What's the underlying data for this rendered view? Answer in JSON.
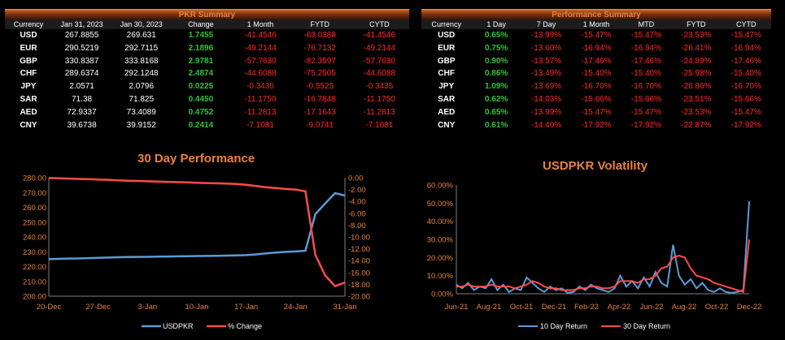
{
  "pkr_summary": {
    "title": "PKR Summary",
    "headers": [
      "Currency",
      "Jan 31, 2023",
      "Jan 30, 2023",
      "Change",
      "1 Month",
      "FYTD",
      "CYTD"
    ],
    "rows": [
      {
        "currency": "USD",
        "jan31": "267.8855",
        "jan30": "269.631",
        "change": "1.7455",
        "m1": "-41.4546",
        "fytd": "-63.0388",
        "cytd": "-41.4546"
      },
      {
        "currency": "EUR",
        "jan31": "290.5219",
        "jan30": "292.7115",
        "change": "2.1896",
        "m1": "-49.2144",
        "fytd": "-76.7132",
        "cytd": "-49.2144"
      },
      {
        "currency": "GBP",
        "jan31": "330.8387",
        "jan30": "333.8168",
        "change": "2.9781",
        "m1": "-57.7630",
        "fytd": "-82.3597",
        "cytd": "-57.7630"
      },
      {
        "currency": "CHF",
        "jan31": "289.6374",
        "jan30": "292.1248",
        "change": "2.4874",
        "m1": "-44.6088",
        "fytd": "-75.2505",
        "cytd": "-44.6088"
      },
      {
        "currency": "JPY",
        "jan31": "2.0571",
        "jan30": "2.0796",
        "change": "0.0225",
        "m1": "-0.3435",
        "fytd": "-0.5525",
        "cytd": "-0.3435"
      },
      {
        "currency": "SAR",
        "jan31": "71.38",
        "jan30": "71.825",
        "change": "0.4450",
        "m1": "-11.1750",
        "fytd": "-16.7848",
        "cytd": "-11.1750"
      },
      {
        "currency": "AED",
        "jan31": "72.9337",
        "jan30": "73.4089",
        "change": "0.4752",
        "m1": "-11.2813",
        "fytd": "-17.1643",
        "cytd": "-11.2813"
      },
      {
        "currency": "CNY",
        "jan31": "39.6738",
        "jan30": "39.9152",
        "change": "0.2414",
        "m1": "-7.1081",
        "fytd": "-9.0741",
        "cytd": "-7.1081"
      }
    ]
  },
  "performance_summary": {
    "title": "Performance Summary",
    "headers": [
      "Currency",
      "1 Day",
      "7 Day",
      "1 Month",
      "MTD",
      "FYTD",
      "CYTD"
    ],
    "rows": [
      {
        "currency": "USD",
        "d1": "0.65%",
        "d7": "-13.99%",
        "m1": "-15.47%",
        "mtd": "-15.47%",
        "fytd": "-23.53%",
        "cytd": "-15.47%"
      },
      {
        "currency": "EUR",
        "d1": "0.75%",
        "d7": "-13.60%",
        "m1": "-16.94%",
        "mtd": "-16.94%",
        "fytd": "-26.41%",
        "cytd": "-16.94%"
      },
      {
        "currency": "GBP",
        "d1": "0.90%",
        "d7": "-13.57%",
        "m1": "-17.46%",
        "mtd": "-17.46%",
        "fytd": "-24.89%",
        "cytd": "-17.46%"
      },
      {
        "currency": "CHF",
        "d1": "0.86%",
        "d7": "-13.49%",
        "m1": "-15.40%",
        "mtd": "-15.40%",
        "fytd": "-25.98%",
        "cytd": "-15.40%"
      },
      {
        "currency": "JPY",
        "d1": "1.09%",
        "d7": "-13.69%",
        "m1": "-16.70%",
        "mtd": "-16.70%",
        "fytd": "-26.86%",
        "cytd": "-16.70%"
      },
      {
        "currency": "SAR",
        "d1": "0.62%",
        "d7": "-14.03%",
        "m1": "-15.66%",
        "mtd": "-15.66%",
        "fytd": "-23.51%",
        "cytd": "-15.66%"
      },
      {
        "currency": "AED",
        "d1": "0.65%",
        "d7": "-13.99%",
        "m1": "-15.47%",
        "mtd": "-15.47%",
        "fytd": "-23.53%",
        "cytd": "-15.47%"
      },
      {
        "currency": "CNY",
        "d1": "0.61%",
        "d7": "-14.40%",
        "m1": "-17.92%",
        "mtd": "-17.92%",
        "fytd": "-22.87%",
        "cytd": "-17.92%"
      }
    ]
  },
  "colors": {
    "positive": "#2fc43a",
    "negative": "#ff2a2a",
    "accent": "#e9823c",
    "series_blue": "#5b9bd5",
    "series_red": "#ff4b4b"
  },
  "chart_data": [
    {
      "type": "line",
      "title": "30 Day Performance",
      "x": [
        "20-Dec",
        "21-Dec",
        "22-Dec",
        "23-Dec",
        "26-Dec",
        "27-Dec",
        "28-Dec",
        "29-Dec",
        "30-Dec",
        "2-Jan",
        "3-Jan",
        "4-Jan",
        "5-Jan",
        "6-Jan",
        "9-Jan",
        "10-Jan",
        "11-Jan",
        "12-Jan",
        "13-Jan",
        "16-Jan",
        "17-Jan",
        "18-Jan",
        "19-Jan",
        "20-Jan",
        "23-Jan",
        "24-Jan",
        "25-Jan",
        "26-Jan",
        "27-Jan",
        "30-Jan",
        "31-Jan"
      ],
      "x_tick_labels": [
        "20-Dec",
        "27-Dec",
        "3-Jan",
        "10-Jan",
        "17-Jan",
        "24-Jan",
        "31-Jan"
      ],
      "series": [
        {
          "name": "USDPKR",
          "axis": "left",
          "values": [
            225.0,
            225.2,
            225.4,
            225.5,
            225.7,
            225.9,
            226.1,
            226.3,
            226.4,
            226.5,
            226.6,
            226.7,
            226.8,
            226.9,
            227.0,
            227.1,
            227.2,
            227.3,
            227.4,
            227.5,
            227.7,
            228.2,
            228.9,
            229.5,
            229.9,
            230.2,
            230.7,
            255.4,
            262.6,
            269.6,
            267.9
          ]
        },
        {
          "name": "% Change",
          "axis": "right",
          "values": [
            -0.05,
            -0.1,
            -0.15,
            -0.2,
            -0.25,
            -0.3,
            -0.35,
            -0.45,
            -0.5,
            -0.55,
            -0.6,
            -0.65,
            -0.7,
            -0.75,
            -0.8,
            -0.85,
            -0.9,
            -0.95,
            -1.0,
            -1.05,
            -1.2,
            -1.4,
            -1.6,
            -1.75,
            -1.9,
            -2.0,
            -2.3,
            -13.0,
            -16.5,
            -18.3,
            -17.7
          ]
        }
      ],
      "left_axis": {
        "ticks": [
          "280.00",
          "270.00",
          "260.00",
          "250.00",
          "240.00",
          "230.00",
          "220.00",
          "210.00",
          "200.00"
        ],
        "range": [
          200,
          280
        ]
      },
      "right_axis": {
        "ticks": [
          "0.00",
          "-2.00",
          "-4.00",
          "-6.00",
          "-8.00",
          "-10.00",
          "-12.00",
          "-14.00",
          "-16.00",
          "-18.00",
          "-20.00"
        ],
        "range": [
          -20,
          0
        ]
      },
      "legend": [
        "USDPKR",
        "% Change"
      ],
      "legend_position": "bottom"
    },
    {
      "type": "line",
      "title": "USDPKR Volatility",
      "x_tick_labels": [
        "Jun-21",
        "Aug-21",
        "Oct-21",
        "Dec-21",
        "Feb-22",
        "Apr-22",
        "Jun-22",
        "Aug-22",
        "Oct-22",
        "Dec-22"
      ],
      "y_axis": {
        "ticks": [
          "60.00%",
          "50.00%",
          "40.00%",
          "30.00%",
          "20.00%",
          "10.00%",
          "0.00%"
        ],
        "range": [
          0,
          60
        ]
      },
      "series": [
        {
          "name": "10 Day Return",
          "values": [
            5,
            3,
            6,
            2,
            4,
            3,
            8,
            2,
            5,
            1,
            3,
            2,
            9,
            6,
            3,
            1,
            4,
            2,
            3,
            0.5,
            1,
            4,
            2,
            5,
            3,
            2,
            1,
            3,
            10,
            4,
            7,
            3,
            9,
            4,
            12,
            6,
            4,
            27,
            10,
            5,
            8,
            3,
            6,
            2,
            1,
            3,
            1,
            0.5,
            1,
            2,
            51
          ]
        },
        {
          "name": "30 Day Return",
          "values": [
            4,
            4,
            5,
            4,
            4,
            4,
            5,
            4,
            4,
            4,
            3,
            4,
            5,
            7,
            6,
            4,
            3,
            3,
            2,
            2,
            2,
            3,
            3,
            4,
            4,
            3,
            3,
            4,
            7,
            7,
            7,
            6,
            8,
            8,
            10,
            14,
            15,
            20,
            21,
            20,
            14,
            10,
            9,
            8,
            6,
            5,
            4,
            3,
            2,
            1,
            30
          ]
        }
      ],
      "legend": [
        "10 Day Return",
        "30 Day Return"
      ],
      "legend_position": "bottom"
    }
  ]
}
